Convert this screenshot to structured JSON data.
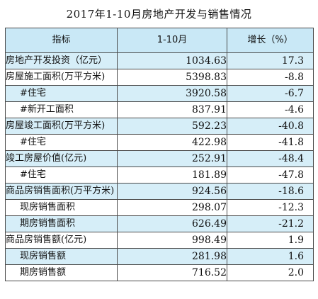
{
  "title": "2017年1-10月房地产开发与销售情况",
  "table": {
    "headers": {
      "indicator": "指标",
      "period": "1-10月",
      "growth": "增长（%）"
    },
    "rows": [
      {
        "name": "房地产开发投资（亿元）",
        "value": "1034.63",
        "growth": "17.3"
      },
      {
        "name": "房屋施工面积(万平方米)",
        "value": "5398.83",
        "growth": "-8.8"
      },
      {
        "name": "#住宅",
        "value": "3920.58",
        "growth": "-6.7"
      },
      {
        "name": "#新开工面积",
        "value": "837.91",
        "growth": "-4.6"
      },
      {
        "name": "房屋竣工面积(万平方米)",
        "value": "592.23",
        "growth": "-40.8"
      },
      {
        "name": "#住宅",
        "value": "422.98",
        "growth": "-41.8"
      },
      {
        "name": "竣工房屋价值(亿元)",
        "value": "252.91",
        "growth": "-48.4"
      },
      {
        "name": "#住宅",
        "value": "181.89",
        "growth": "-47.8"
      },
      {
        "name": "商品房销售面积(万平方米)",
        "value": "924.56",
        "growth": "-18.6"
      },
      {
        "name": "现房销售面积",
        "value": "298.07",
        "growth": "-12.3"
      },
      {
        "name": "期房销售面积",
        "value": "626.49",
        "growth": "-21.2"
      },
      {
        "name": "商品房销售额(亿元)",
        "value": "998.49",
        "growth": "1.9"
      },
      {
        "name": "现房销售额",
        "value": "281.98",
        "growth": "1.6"
      },
      {
        "name": "期房销售额",
        "value": "716.52",
        "growth": "2.0"
      }
    ]
  },
  "colors": {
    "header_bg": "#c9e8f6",
    "stripe_bg": "#d6eef8",
    "border": "#4a4a4a"
  }
}
